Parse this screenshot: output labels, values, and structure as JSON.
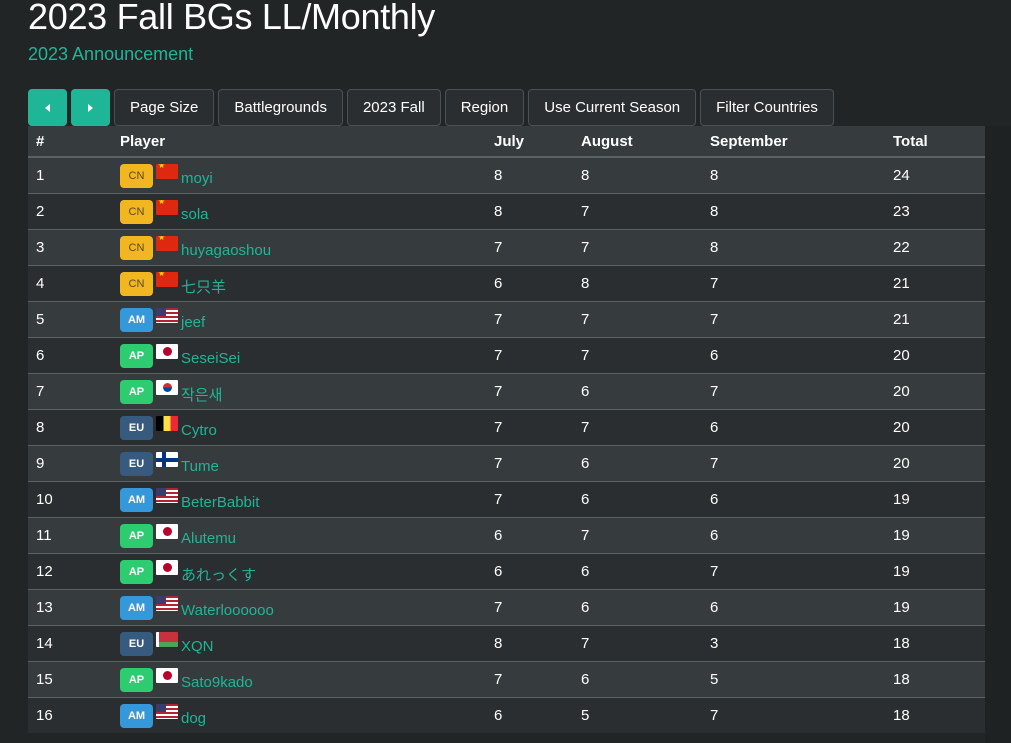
{
  "header": {
    "title": "2023 Fall BGs LL/Monthly",
    "subtitle_link": "2023 Announcement"
  },
  "toolbar": {
    "prev_icon": "caret-left-icon",
    "next_icon": "caret-right-icon",
    "buttons": [
      "Page Size",
      "Battlegrounds",
      "2023 Fall",
      "Region",
      "Use Current Season",
      "Filter Countries"
    ]
  },
  "colors": {
    "accent": "#1fb597",
    "background": "#222526",
    "region_CN": "#f2b620",
    "region_AM": "#3498db",
    "region_AP": "#2ecc71",
    "region_EU": "#375a7f"
  },
  "table": {
    "columns": [
      "#",
      "Player",
      "July",
      "August",
      "September",
      "Total"
    ],
    "rows": [
      {
        "rank": "1",
        "region": "CN",
        "flag": "cn",
        "player": "moyi",
        "july": "8",
        "august": "8",
        "september": "8",
        "total": "24"
      },
      {
        "rank": "2",
        "region": "CN",
        "flag": "cn",
        "player": "sola",
        "july": "8",
        "august": "7",
        "september": "8",
        "total": "23"
      },
      {
        "rank": "3",
        "region": "CN",
        "flag": "cn",
        "player": "huyagaoshou",
        "july": "7",
        "august": "7",
        "september": "8",
        "total": "22"
      },
      {
        "rank": "4",
        "region": "CN",
        "flag": "cn",
        "player": "七只羊",
        "july": "6",
        "august": "8",
        "september": "7",
        "total": "21"
      },
      {
        "rank": "5",
        "region": "AM",
        "flag": "us",
        "player": "jeef",
        "july": "7",
        "august": "7",
        "september": "7",
        "total": "21"
      },
      {
        "rank": "6",
        "region": "AP",
        "flag": "jp",
        "player": "SeseiSei",
        "july": "7",
        "august": "7",
        "september": "6",
        "total": "20"
      },
      {
        "rank": "7",
        "region": "AP",
        "flag": "kr",
        "player": "작은새",
        "july": "7",
        "august": "6",
        "september": "7",
        "total": "20"
      },
      {
        "rank": "8",
        "region": "EU",
        "flag": "be",
        "player": "Cytro",
        "july": "7",
        "august": "7",
        "september": "6",
        "total": "20"
      },
      {
        "rank": "9",
        "region": "EU",
        "flag": "fi",
        "player": "Tume",
        "july": "7",
        "august": "6",
        "september": "7",
        "total": "20"
      },
      {
        "rank": "10",
        "region": "AM",
        "flag": "us",
        "player": "BeterBabbit",
        "july": "7",
        "august": "6",
        "september": "6",
        "total": "19"
      },
      {
        "rank": "11",
        "region": "AP",
        "flag": "jp",
        "player": "Alutemu",
        "july": "6",
        "august": "7",
        "september": "6",
        "total": "19"
      },
      {
        "rank": "12",
        "region": "AP",
        "flag": "jp",
        "player": "あれっくす",
        "july": "6",
        "august": "6",
        "september": "7",
        "total": "19"
      },
      {
        "rank": "13",
        "region": "AM",
        "flag": "us",
        "player": "Waterloooooo",
        "july": "7",
        "august": "6",
        "september": "6",
        "total": "19"
      },
      {
        "rank": "14",
        "region": "EU",
        "flag": "by",
        "player": "XQN",
        "july": "8",
        "august": "7",
        "september": "3",
        "total": "18"
      },
      {
        "rank": "15",
        "region": "AP",
        "flag": "jp",
        "player": "Sato9kado",
        "july": "7",
        "august": "6",
        "september": "5",
        "total": "18"
      },
      {
        "rank": "16",
        "region": "AM",
        "flag": "us",
        "player": "dog",
        "july": "6",
        "august": "5",
        "september": "7",
        "total": "18"
      }
    ]
  }
}
